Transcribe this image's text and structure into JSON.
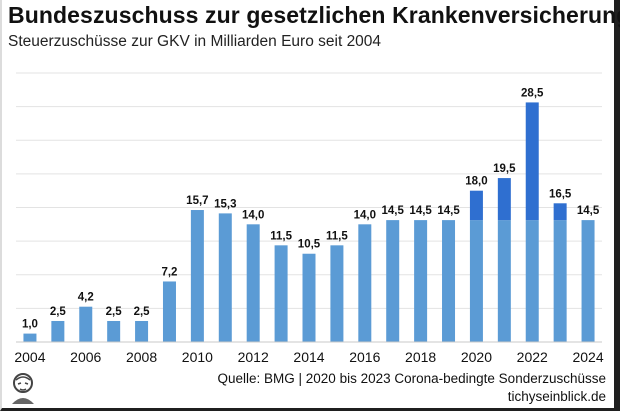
{
  "title": "Bundeszuschuss zur gesetzlichen Krankenversicherung",
  "subtitle": "Steuerzuschüsse zur GKV in Milliarden Euro seit 2004",
  "source": "Quelle: BMG | 2020 bis 2023 Corona-bedingte Sonderzuschüsse",
  "site": "tichyseinblick.de",
  "colors": {
    "base": "#5b9bd5",
    "extra": "#2f6fd0",
    "grid": "#e3e3e3",
    "text": "#111111"
  },
  "chart_data": {
    "type": "bar",
    "categories": [
      "2004",
      "2005",
      "2006",
      "2007",
      "2008",
      "2009",
      "2010",
      "2011",
      "2012",
      "2013",
      "2014",
      "2015",
      "2016",
      "2017",
      "2018",
      "2019",
      "2020",
      "2021",
      "2022",
      "2023",
      "2024"
    ],
    "values": [
      1.0,
      2.5,
      4.2,
      2.5,
      2.5,
      7.2,
      15.7,
      15.3,
      14.0,
      11.5,
      10.5,
      11.5,
      14.0,
      14.5,
      14.5,
      14.5,
      18.0,
      19.5,
      28.5,
      16.5,
      14.5
    ],
    "value_labels": [
      "1,0",
      "2,5",
      "4,2",
      "2,5",
      "2,5",
      "7,2",
      "15,7",
      "15,3",
      "14,0",
      "11,5",
      "10,5",
      "11,5",
      "14,0",
      "14,5",
      "14,5",
      "14,5",
      "18,0",
      "19,5",
      "28,5",
      "16,5",
      "14,5"
    ],
    "series": [
      {
        "values": [
          1.0,
          2.5,
          4.2,
          2.5,
          2.5,
          7.2,
          15.7,
          15.3,
          14.0,
          11.5,
          10.5,
          11.5,
          14.0,
          14.5,
          14.5,
          14.5,
          14.5,
          14.5,
          14.5,
          14.5,
          14.5
        ]
      },
      {
        "values": [
          0,
          0,
          0,
          0,
          0,
          0,
          0,
          0,
          0,
          0,
          0,
          0,
          0,
          0,
          0,
          0,
          3.5,
          5.0,
          14.0,
          2.0,
          0
        ]
      }
    ],
    "x_tick_labels": [
      "2004",
      "2006",
      "2008",
      "2010",
      "2012",
      "2014",
      "2016",
      "2018",
      "2020",
      "2022",
      "2024"
    ],
    "ylim": [
      0,
      32
    ],
    "grid": true,
    "xlabel": "",
    "ylabel": ""
  }
}
